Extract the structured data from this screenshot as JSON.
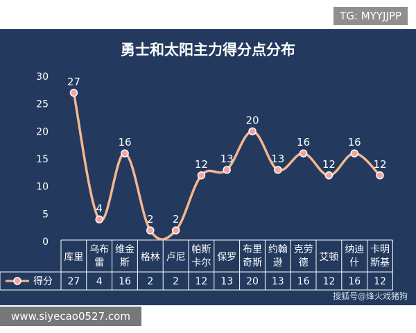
{
  "watermarks": {
    "tg": "TG: MYYJJPP",
    "site": "www.siyecao0527.com",
    "credit": "搜狐号@烽火戏猪狗"
  },
  "colors": {
    "panel_bg": "#233a5e",
    "line": "#f4b88e",
    "marker_fill": "#f2a4a0",
    "table_line": "#ffffff"
  },
  "chart_data": {
    "type": "line",
    "title": "勇士和太阳主力得分点分布",
    "categories": [
      [
        "库里"
      ],
      [
        "乌布",
        "雷"
      ],
      [
        "维金",
        "斯"
      ],
      [
        "格林"
      ],
      [
        "卢尼"
      ],
      [
        "帕斯",
        "卡尔"
      ],
      [
        "保罗"
      ],
      [
        "布里",
        "奇斯"
      ],
      [
        "约翰",
        "逊"
      ],
      [
        "克劳",
        "德"
      ],
      [
        "艾顿"
      ],
      [
        "纳迪",
        "什"
      ],
      [
        "卡明",
        "斯基"
      ]
    ],
    "series": [
      {
        "name": "得分",
        "values": [
          27,
          4,
          16,
          2,
          2,
          12,
          13,
          20,
          13,
          16,
          12,
          16,
          12
        ]
      }
    ],
    "yticks": [
      0,
      5,
      10,
      15,
      20,
      25,
      30
    ],
    "ylim": [
      0,
      30
    ],
    "smooth": true,
    "data_labels": true,
    "grid": false,
    "legend": "data-table"
  }
}
